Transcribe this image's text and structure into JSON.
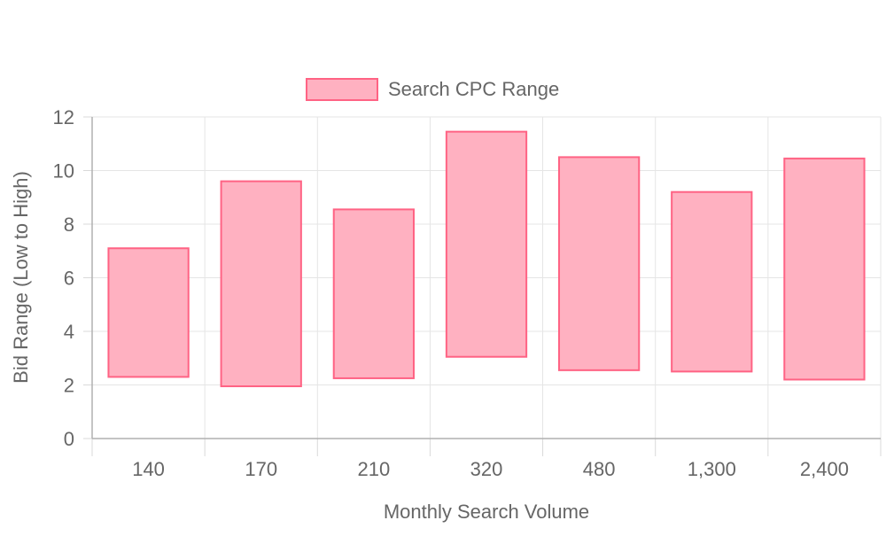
{
  "chart_data": {
    "type": "bar",
    "subtype": "floating-range",
    "categories": [
      "140",
      "170",
      "210",
      "320",
      "480",
      "1,300",
      "2,400"
    ],
    "series": [
      {
        "name": "Search CPC Range",
        "ranges": [
          [
            2.3,
            7.1
          ],
          [
            1.95,
            9.6
          ],
          [
            2.25,
            8.55
          ],
          [
            3.05,
            11.45
          ],
          [
            2.55,
            10.5
          ],
          [
            2.5,
            9.2
          ],
          [
            2.2,
            10.45
          ]
        ],
        "fill_color": "#ffb1c1",
        "border_color": "#ff6384"
      }
    ],
    "xlabel": "Monthly Search Volume",
    "ylabel": "Bid Range (Low to High)",
    "ylim": [
      0,
      12
    ],
    "yticks": [
      0,
      2,
      4,
      6,
      8,
      10,
      12
    ],
    "grid": true,
    "legend_position": "top"
  }
}
